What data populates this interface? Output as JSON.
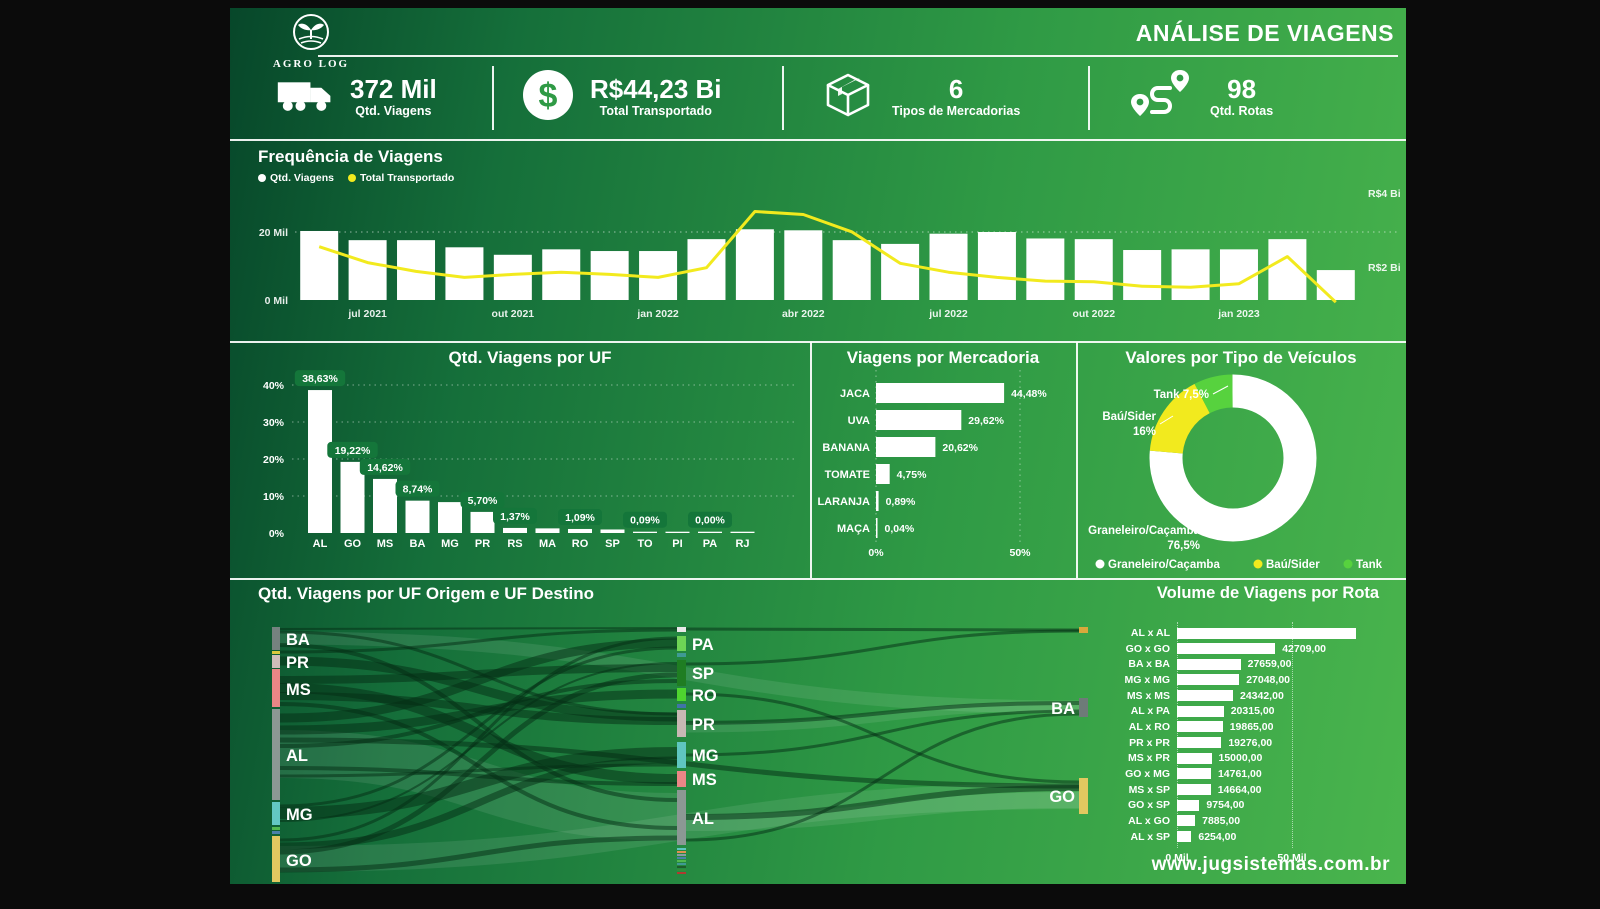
{
  "header": {
    "brand": "AGRO LOG",
    "title": "ANÁLISE DE VIAGENS"
  },
  "kpis": [
    {
      "icon": "truck-icon",
      "value": "372 Mil",
      "label": "Qtd. Viagens"
    },
    {
      "icon": "dollar-coin-icon",
      "value": "R$44,23 Bi",
      "label": "Total Transportado"
    },
    {
      "icon": "box-icon",
      "value": "6",
      "label": "Tipos de Mercadorias"
    },
    {
      "icon": "route-icon",
      "value": "98",
      "label": "Qtd. Rotas"
    }
  ],
  "frequency": {
    "title": "Frequência de Viagens",
    "legend": [
      {
        "label": "Qtd. Viagens",
        "color": "#ffffff"
      },
      {
        "label": "Total Transportado",
        "color": "#f2ea1e"
      }
    ]
  },
  "chart_data": [
    {
      "id": "frequencia",
      "type": "bar+line",
      "title": "Frequência de Viagens",
      "bar_series": "Qtd. Viagens",
      "bars_mil": [
        20.3,
        17.6,
        17.6,
        15.5,
        13.3,
        14.9,
        14.4,
        14.4,
        17.9,
        20.8,
        20.5,
        17.6,
        16.5,
        19.5,
        20.0,
        18.1,
        17.9,
        14.7,
        14.9,
        14.9,
        17.9,
        8.8
      ],
      "line_series": "Total Transportado",
      "line_rbi": [
        2.55,
        2.12,
        1.88,
        1.72,
        1.8,
        1.86,
        1.8,
        1.72,
        1.98,
        3.5,
        3.42,
        2.95,
        2.1,
        1.86,
        1.72,
        1.62,
        1.6,
        1.48,
        1.45,
        1.55,
        2.28,
        1.05
      ],
      "x_tick_labels": [
        "jul 2021",
        "out 2021",
        "jan 2022",
        "abr 2022",
        "jul 2022",
        "out 2022",
        "jan 2023"
      ],
      "x_tick_indices": [
        1,
        4,
        7,
        10,
        13,
        16,
        19
      ],
      "left_axis_ticks": [
        "20 Mil",
        "0 Mil"
      ],
      "right_axis_ticks": [
        "R$4 Bi",
        "R$2 Bi"
      ],
      "left_ylim": [
        0,
        20
      ],
      "right_ylim_rbi": [
        2,
        4
      ],
      "grid": "dotted-20mil"
    },
    {
      "id": "uf",
      "type": "bar",
      "title": "Qtd. Viagens por UF",
      "categories": [
        "AL",
        "GO",
        "MS",
        "BA",
        "MG",
        "PR",
        "RS",
        "MA",
        "RO",
        "SP",
        "TO",
        "PI",
        "PA",
        "RJ"
      ],
      "values": [
        38.63,
        19.22,
        14.62,
        8.74,
        8.35,
        5.7,
        1.37,
        1.25,
        1.09,
        0.95,
        0.09,
        0.05,
        0.0,
        0.0
      ],
      "labels": [
        "38,63%",
        "19,22%",
        "14,62%",
        "8,74%",
        "",
        "5,70%",
        "1,37%",
        "",
        "1,09%",
        "",
        "0,09%",
        "",
        "0,00%",
        ""
      ],
      "y_ticks": [
        "0%",
        "10%",
        "20%",
        "30%",
        "40%"
      ],
      "ylim": [
        0,
        40
      ]
    },
    {
      "id": "mercadoria",
      "type": "hbar",
      "title": "Viagens por Mercadoria",
      "categories": [
        "JACA",
        "UVA",
        "BANANA",
        "TOMATE",
        "LARANJA",
        "MAÇA"
      ],
      "values": [
        44.48,
        29.62,
        20.62,
        4.75,
        0.89,
        0.04
      ],
      "labels": [
        "44,48%",
        "29,62%",
        "20,62%",
        "4,75%",
        "0,89%",
        "0,04%"
      ],
      "x_ticks": [
        "0%",
        "50%"
      ],
      "xlim": [
        0,
        50
      ]
    },
    {
      "id": "veiculos",
      "type": "donut",
      "title": "Valores por Tipo de Veículos",
      "slices": [
        {
          "label": "Graneleiro/Caçamba",
          "value": 76.5,
          "color": "#ffffff",
          "callout": [
            "Graneleiro/Caçamba",
            "76,5%"
          ]
        },
        {
          "label": "Baú/Sider",
          "value": 16.0,
          "color": "#f2ea1e",
          "callout": [
            "Baú/Sider",
            "16%"
          ]
        },
        {
          "label": "Tank",
          "value": 7.5,
          "color": "#57d23e",
          "callout": [
            "Tank 7,5%"
          ]
        }
      ],
      "legend_position": "bottom"
    },
    {
      "id": "volume-rota",
      "type": "hbar",
      "title": "Volume de Viagens por Rota",
      "rows": [
        {
          "route": "AL x AL",
          "value": 78000,
          "label": ""
        },
        {
          "route": "GO x GO",
          "value": 42709,
          "label": "42709,00"
        },
        {
          "route": "BA x BA",
          "value": 27659,
          "label": "27659,00"
        },
        {
          "route": "MG x MG",
          "value": 27048,
          "label": "27048,00"
        },
        {
          "route": "MS x MS",
          "value": 24342,
          "label": "24342,00"
        },
        {
          "route": "AL x PA",
          "value": 20315,
          "label": "20315,00"
        },
        {
          "route": "AL x RO",
          "value": 19865,
          "label": "19865,00"
        },
        {
          "route": "PR x PR",
          "value": 19276,
          "label": "19276,00"
        },
        {
          "route": "MS x PR",
          "value": 15000,
          "label": "15000,00"
        },
        {
          "route": "GO x MG",
          "value": 14761,
          "label": "14761,00"
        },
        {
          "route": "MS x SP",
          "value": 14664,
          "label": "14664,00"
        },
        {
          "route": "GO x SP",
          "value": 9754,
          "label": "9754,00"
        },
        {
          "route": "AL x GO",
          "value": 7885,
          "label": "7885,00"
        },
        {
          "route": "AL x SP",
          "value": 6254,
          "label": "6254,00"
        }
      ],
      "x_ticks": [
        "0 Mil",
        "50 Mil"
      ],
      "xlim_mil": [
        0,
        50
      ]
    }
  ],
  "sankey": {
    "title": "Qtd. Viagens por UF Origem e UF Destino",
    "nodes": [
      [
        2,
        9,
        8,
        23,
        "#75827f"
      ],
      [
        2,
        33,
        8,
        3,
        "#d8c83c"
      ],
      [
        2,
        37,
        8,
        13,
        "#cfbdb9"
      ],
      [
        2,
        51,
        8,
        38,
        "#ea8686"
      ],
      [
        2,
        91,
        8,
        91,
        "#8c9894"
      ],
      [
        2,
        184,
        8,
        23,
        "#63c8c2"
      ],
      [
        2,
        209,
        8,
        3,
        "#52b84e"
      ],
      [
        2,
        213,
        8,
        3,
        "#4a80a8"
      ],
      [
        2,
        218,
        8,
        46,
        "#e2c860"
      ],
      [
        407,
        9,
        9,
        5,
        "#e9e9e9"
      ],
      [
        407,
        18,
        9,
        15,
        "#6ed455"
      ],
      [
        407,
        35,
        9,
        4,
        "#3f9a94"
      ],
      [
        407,
        42,
        9,
        26,
        "#1f7d22"
      ],
      [
        407,
        70,
        9,
        13,
        "#4ed42f"
      ],
      [
        407,
        86,
        9,
        4,
        "#3f74a8"
      ],
      [
        407,
        92,
        9,
        27,
        "#c8b8b4"
      ],
      [
        407,
        124,
        9,
        26,
        "#5fc6c0"
      ],
      [
        407,
        153,
        9,
        16,
        "#ea8686"
      ],
      [
        407,
        172,
        9,
        55,
        "#8c9894"
      ],
      [
        407,
        230,
        9,
        2,
        "#5fc6c0"
      ],
      [
        407,
        233,
        9,
        2,
        "#e09050"
      ],
      [
        407,
        236,
        9,
        2,
        "#8a9aa2"
      ],
      [
        407,
        239,
        9,
        2,
        "#4a80a8"
      ],
      [
        407,
        242,
        9,
        2,
        "#52b84e"
      ],
      [
        407,
        245,
        9,
        2,
        "#3f9a94"
      ],
      [
        407,
        248,
        9,
        2,
        "#1f5d2a"
      ],
      [
        407,
        251,
        9,
        2,
        "#2f8f3a"
      ],
      [
        407,
        254,
        9,
        2,
        "#b03a30"
      ],
      [
        809,
        9,
        9,
        6,
        "#d8a83c"
      ],
      [
        809,
        80,
        9,
        19,
        "#6e7b78"
      ],
      [
        809,
        160,
        9,
        36,
        "#e2c860"
      ]
    ],
    "node_labels": [
      [
        "BA",
        16,
        27,
        "start"
      ],
      [
        "PR",
        16,
        50,
        "start"
      ],
      [
        "MS",
        16,
        77,
        "start"
      ],
      [
        "AL",
        16,
        143,
        "start"
      ],
      [
        "MG",
        16,
        202,
        "start"
      ],
      [
        "GO",
        16,
        248,
        "start"
      ],
      [
        "PA",
        422,
        32,
        "start"
      ],
      [
        "SP",
        422,
        61,
        "start"
      ],
      [
        "RO",
        422,
        83,
        "start"
      ],
      [
        "PR",
        422,
        112,
        "start"
      ],
      [
        "MG",
        422,
        143,
        "start"
      ],
      [
        "MS",
        422,
        167,
        "start"
      ],
      [
        "AL",
        422,
        206,
        "start"
      ],
      [
        "BA",
        805,
        96,
        "end"
      ],
      [
        "GO",
        805,
        184,
        "end"
      ]
    ],
    "links": [
      [
        10,
        136,
        407,
        199,
        48,
        "light"
      ],
      [
        10,
        241,
        809,
        178,
        26,
        "light"
      ],
      [
        10,
        20,
        809,
        89,
        13,
        "light"
      ],
      [
        416,
        205,
        809,
        182,
        16,
        "light"
      ],
      [
        416,
        110,
        809,
        88,
        9,
        "light"
      ],
      [
        10,
        70,
        407,
        161,
        10,
        "dark"
      ],
      [
        10,
        78,
        407,
        103,
        8,
        "dark"
      ],
      [
        10,
        62,
        407,
        50,
        8,
        "dark"
      ],
      [
        10,
        195,
        407,
        135,
        12,
        "dark"
      ],
      [
        10,
        228,
        407,
        142,
        7,
        "dark"
      ],
      [
        10,
        234,
        407,
        57,
        5,
        "dark"
      ],
      [
        10,
        43,
        407,
        99,
        9,
        "dark"
      ],
      [
        10,
        100,
        407,
        25,
        9,
        "dark"
      ],
      [
        10,
        112,
        407,
        76,
        9,
        "dark"
      ],
      [
        10,
        122,
        809,
        168,
        5,
        "dark"
      ],
      [
        10,
        128,
        407,
        63,
        4,
        "dark"
      ],
      [
        10,
        27,
        407,
        182,
        4,
        "dark"
      ],
      [
        10,
        86,
        407,
        210,
        4,
        "dark"
      ],
      [
        10,
        252,
        407,
        220,
        5,
        "dark"
      ],
      [
        10,
        150,
        407,
        166,
        4,
        "dark"
      ],
      [
        10,
        158,
        407,
        147,
        3,
        "dark"
      ],
      [
        10,
        14,
        407,
        96,
        3,
        "dark"
      ],
      [
        10,
        188,
        407,
        30,
        3,
        "dark"
      ],
      [
        10,
        34,
        407,
        12,
        3,
        "dark"
      ],
      [
        10,
        11,
        407,
        10,
        2,
        "dark"
      ],
      [
        10,
        203,
        407,
        45,
        2,
        "dark"
      ],
      [
        10,
        222,
        407,
        20,
        3,
        "dark"
      ],
      [
        416,
        11,
        809,
        12,
        3,
        "dark"
      ],
      [
        416,
        46,
        809,
        13,
        3,
        "dark"
      ],
      [
        416,
        199,
        809,
        170,
        6,
        "dark"
      ],
      [
        416,
        105,
        809,
        85,
        4,
        "dark"
      ],
      [
        416,
        137,
        809,
        93,
        3,
        "dark"
      ],
      [
        416,
        222,
        809,
        96,
        3,
        "dark"
      ],
      [
        416,
        76,
        809,
        164,
        3,
        "dark"
      ]
    ],
    "colors": {
      "dark": "rgba(4,44,20,0.5)",
      "light": "rgba(255,255,255,0.09)"
    }
  },
  "footer": {
    "url": "www.jugsistemas.com.br"
  }
}
